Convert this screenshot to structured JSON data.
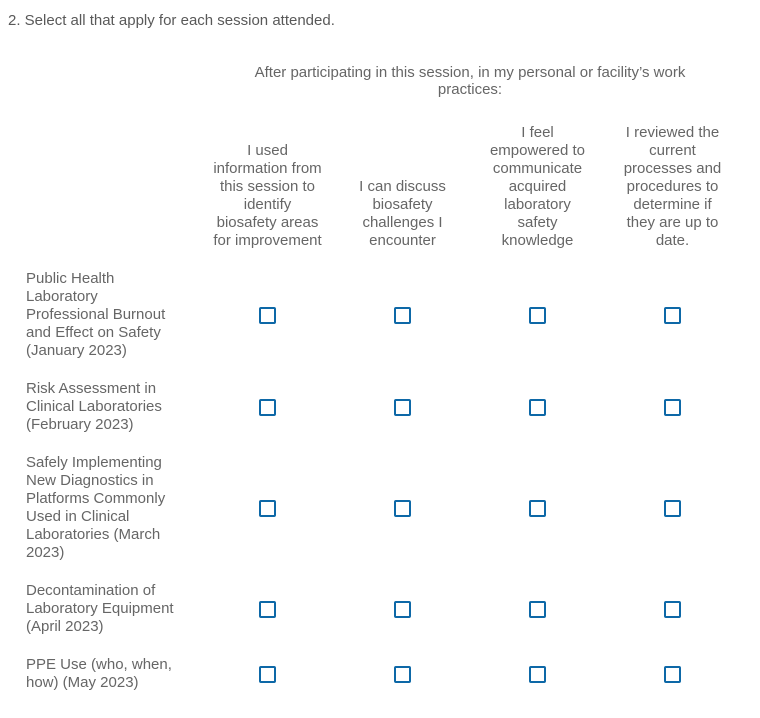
{
  "question": {
    "title": "2. Select all that apply for each session attended."
  },
  "matrix": {
    "group_header": "After participating in this session, in my personal or facility’s work practices:",
    "column_headers": [
      "I used information from this session to identify biosafety areas for improvement",
      "I can discuss biosafety challenges I encounter",
      "I feel empowered to communicate acquired laboratory safety knowledge",
      "I reviewed the current processes and procedures to determine if they are up to date."
    ],
    "rows": [
      {
        "label": "Public Health Laboratory Professional Burnout and Effect on Safety (January 2023)",
        "checkboxes": [
          false,
          false,
          false,
          false
        ]
      },
      {
        "label": "Risk Assessment in Clinical Laboratories (February 2023)",
        "checkboxes": [
          false,
          false,
          false,
          false
        ]
      },
      {
        "label": "Safely Implementing New Diagnostics in Platforms Commonly Used in Clinical Laboratories (March 2023)",
        "checkboxes": [
          false,
          false,
          false,
          false
        ]
      },
      {
        "label": "Decontamination of Laboratory Equipment (April 2023)",
        "checkboxes": [
          false,
          false,
          false,
          false
        ]
      },
      {
        "label": "PPE Use (who, when, how) (May 2023)",
        "checkboxes": [
          false,
          false,
          false,
          false
        ]
      }
    ]
  },
  "colors": {
    "checkbox_border": "#0d68a7",
    "text": "#666666",
    "title_text": "#595959"
  }
}
